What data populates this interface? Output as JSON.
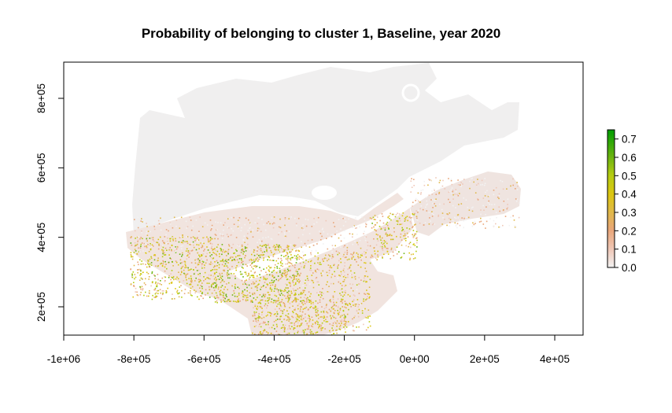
{
  "chart_data": {
    "type": "heatmap",
    "title": "Probability of belonging to cluster 1, Baseline, year 2020",
    "xlabel": "",
    "ylabel": "",
    "xlim": [
      -1000000,
      480000
    ],
    "ylim": [
      120000,
      900000
    ],
    "x_ticks": [
      -1000000,
      -800000,
      -600000,
      -400000,
      -200000,
      0,
      200000,
      400000
    ],
    "x_tick_labels": [
      "-1e+06",
      "-8e+05",
      "-6e+05",
      "-4e+05",
      "-2e+05",
      "0e+00",
      "2e+05",
      "4e+05"
    ],
    "y_ticks": [
      200000,
      400000,
      600000,
      800000
    ],
    "y_tick_labels": [
      "2e+05",
      "4e+05",
      "6e+05",
      "8e+05"
    ],
    "colorbar": {
      "range": [
        0,
        0.75
      ],
      "ticks": [
        0,
        0.1,
        0.2,
        0.3,
        0.4,
        0.5,
        0.6,
        0.7
      ],
      "tick_labels": [
        "0.0",
        "0.1",
        "0.2",
        "0.3",
        "0.4",
        "0.5",
        "0.6",
        "0.7"
      ],
      "colors": [
        "#f2f2f2",
        "#efc8b8",
        "#e9a67a",
        "#e0b84a",
        "#dcc611",
        "#b5cc12",
        "#6db410",
        "#009e00"
      ],
      "placement": "right"
    },
    "map_regions": [
      {
        "zone": "north",
        "level": 0.0
      },
      {
        "zone": "gaspe",
        "level": 0.1
      },
      {
        "zone": "south-west",
        "level": 0.35
      },
      {
        "zone": "south-central",
        "level": 0.3
      },
      {
        "zone": "south-east",
        "level": 0.2
      }
    ]
  },
  "colors": {
    "background": "#ffffff",
    "axis": "#000000",
    "land_base": "#f0efef"
  }
}
